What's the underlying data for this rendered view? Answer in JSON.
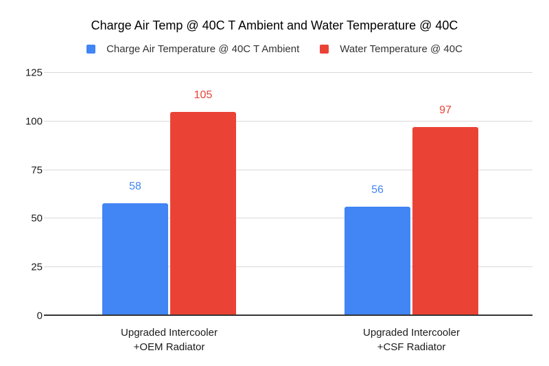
{
  "chart_data": {
    "type": "bar",
    "title": "Charge Air Temp @ 40C T Ambient and Water Temperature @ 40C",
    "categories": [
      "Upgraded Intercooler\n+OEM Radiator",
      "Upgraded Intercooler\n+CSF Radiator"
    ],
    "series": [
      {
        "name": "Charge Air Temperature @ 40C T Ambient",
        "color": "#4285F4",
        "values": [
          58,
          56
        ]
      },
      {
        "name": "Water Temperature @ 40C",
        "color": "#EA4335",
        "values": [
          105,
          97
        ]
      }
    ],
    "xlabel": "",
    "ylabel": "",
    "ylim": [
      0,
      125
    ],
    "yticks": [
      0,
      25,
      50,
      75,
      100,
      125
    ],
    "grid": true,
    "legend_position": "top",
    "data_labels": true
  }
}
